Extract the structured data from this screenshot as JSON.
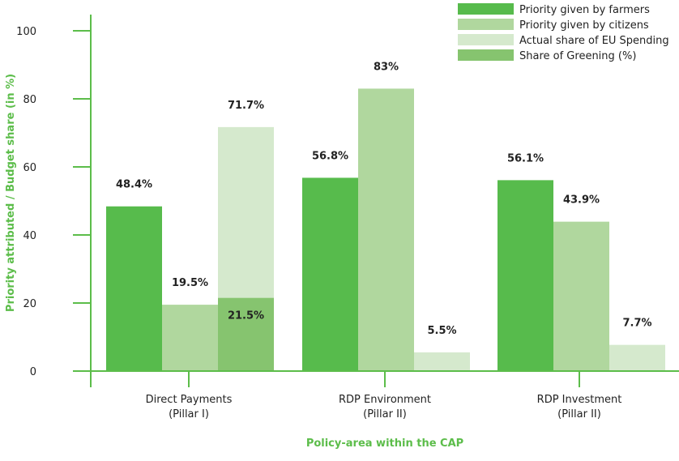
{
  "chart_data": {
    "type": "bar",
    "xlabel": "Policy-area within the CAP",
    "ylabel": "Priority attributed / Budget share (in %)",
    "ylim": [
      0,
      100
    ],
    "yticks": [
      0,
      20,
      40,
      60,
      80,
      100
    ],
    "categories": [
      [
        "Direct Payments",
        "(Pillar I)"
      ],
      [
        "RDP Environment",
        "(Pillar II)"
      ],
      [
        "RDP Investment",
        "(Pillar II)"
      ]
    ],
    "series": [
      {
        "name": "Priority given by farmers",
        "values": [
          48.4,
          56.8,
          56.1
        ],
        "labels": [
          "48.4%",
          "56.8%",
          "56.1%"
        ]
      },
      {
        "name": "Priority given by citizens",
        "values": [
          19.5,
          83,
          43.9
        ],
        "labels": [
          "19.5%",
          "83%",
          "43.9%"
        ]
      },
      {
        "name": "Actual share of EU Spending",
        "values": [
          71.7,
          5.5,
          7.7
        ],
        "labels": [
          "71.7%",
          "5.5%",
          "7.7%"
        ]
      },
      {
        "name": "Share of Greening (%)",
        "values": [
          21.5,
          null,
          null
        ],
        "labels": [
          "21.5%",
          null,
          null
        ]
      }
    ],
    "legend_position": "top-right",
    "grid": false
  },
  "colors": {
    "farmers": "#57bb4c",
    "citizens": "#b0d79e",
    "spending": "#d5e9cd",
    "greening": "#86c46f",
    "axis": "#5cbd4a",
    "axis_title": "#5cbd4a"
  }
}
